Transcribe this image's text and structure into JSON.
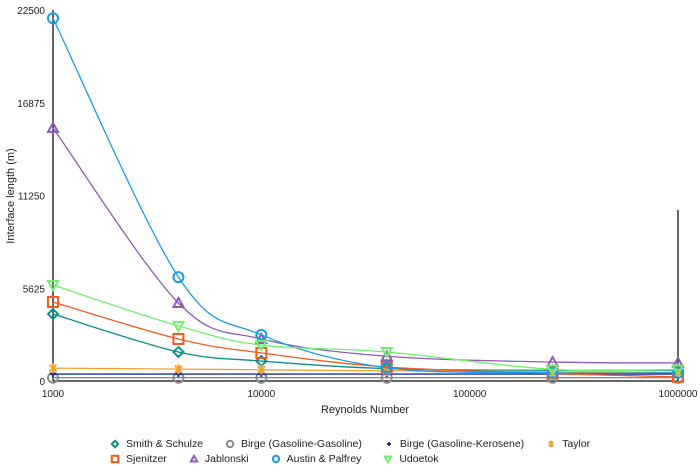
{
  "chart_data": {
    "type": "line",
    "xlabel": "Reynolds Number",
    "ylabel": "Interface length (m)",
    "xscale": "log",
    "xlim": [
      1000,
      1000000
    ],
    "ylim": [
      0,
      22500
    ],
    "xticks": [
      "1000",
      "10000",
      "100000",
      "1000000"
    ],
    "yticks": [
      "0",
      "5625",
      "11250",
      "16875",
      "22500"
    ],
    "grid": false,
    "legend": "bottom",
    "x": [
      1000,
      4000,
      10000,
      40000,
      250000,
      1000000
    ],
    "series": [
      {
        "name": "Smith & Schulze",
        "color": "#0f8f8a",
        "marker": "diamond",
        "values": [
          4060,
          1760,
          1210,
          750,
          650,
          650
        ]
      },
      {
        "name": "Birge (Gasoline-Gasoline)",
        "color": "#8c8c8c",
        "marker": "circle",
        "values": [
          200,
          200,
          200,
          200,
          200,
          200
        ]
      },
      {
        "name": "Birge (Gasoline-Kerosene)",
        "color": "#1a2fa0",
        "marker": "plus",
        "values": [
          420,
          420,
          420,
          420,
          420,
          420
        ]
      },
      {
        "name": "Taylor",
        "color": "#f5a030",
        "marker": "star",
        "values": [
          780,
          720,
          680,
          620,
          560,
          520
        ]
      },
      {
        "name": "Sjenitzer",
        "color": "#f25a22",
        "marker": "square",
        "values": [
          4790,
          2550,
          1700,
          850,
          450,
          250
        ]
      },
      {
        "name": "Jablonski",
        "color": "#8e5bb5",
        "marker": "triangle",
        "values": [
          15350,
          4730,
          2550,
          1500,
          1150,
          1100
        ]
      },
      {
        "name": "Austin & Palfrey",
        "color": "#1a9be8",
        "marker": "circle",
        "values": [
          22000,
          6300,
          2800,
          800,
          500,
          500
        ]
      },
      {
        "name": "Udoetok",
        "color": "#6ff06a",
        "marker": "triangle-down",
        "values": [
          5820,
          3340,
          2180,
          1760,
          700,
          700
        ]
      }
    ]
  }
}
